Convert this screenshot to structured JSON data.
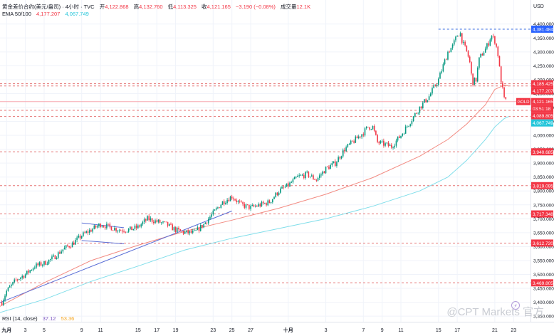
{
  "header": {
    "symbol": "黄金差价合约(美元/盎司) · 4小时 · TVC",
    "open_label": "开",
    "open": "4,122.868",
    "high_label": "高",
    "high": "4,132.760",
    "low_label": "低",
    "low": "4,113.325",
    "close_label": "收",
    "close": "4,121.165",
    "change": "−3.190 (−0.08%)",
    "volume_label": "成交量",
    "volume": "12.1K",
    "ema_label": "EMA 50/100",
    "ema50": "4,177.207",
    "ema100": "4,067.749"
  },
  "rsi": {
    "label": "RSI (14, close)",
    "v1": "37.12",
    "v2": "53.36"
  },
  "watermark": "@CPT Markets 官方",
  "currency": "USD",
  "colors": {
    "up": "#089981",
    "down": "#f23645",
    "ema50": "#f28b82",
    "ema100": "#80deea",
    "trend": "#5b6fd6",
    "hline": "#e57373",
    "topline": "#3d6fe0"
  },
  "chart_data": {
    "type": "candlestick",
    "title": "",
    "xlabel": "",
    "ylabel": "",
    "ylim": [
      3335,
      4430
    ],
    "y_ticks": [
      "4,400.000",
      "4,350.000",
      "4,300.000",
      "4,250.000",
      "4,200.000",
      "4,150.000",
      "4,100.000",
      "4,050.000",
      "4,000.000",
      "3,950.000",
      "3,900.000",
      "3,850.000",
      "3,800.000",
      "3,750.000",
      "3,700.000",
      "3,650.000",
      "3,600.000",
      "3,550.000",
      "3,500.000",
      "3,450.000",
      "3,400.000",
      "3,350.000"
    ],
    "y_tick_values": [
      4400,
      4350,
      4300,
      4250,
      4200,
      4150,
      4100,
      4050,
      4000,
      3950,
      3900,
      3850,
      3800,
      3750,
      3700,
      3650,
      3600,
      3550,
      3500,
      3450,
      3400,
      3350
    ],
    "x_ticks": [
      "九月",
      "3",
      "5",
      "9",
      "11",
      "15",
      "17",
      "19",
      "23",
      "25",
      "27",
      "十月",
      "3",
      "7",
      "9",
      "11",
      "15",
      "17",
      "21",
      "23"
    ],
    "x_tick_days": [
      1,
      3,
      5,
      9,
      11,
      15,
      17,
      19,
      23,
      25,
      27,
      31,
      35,
      39,
      41,
      43,
      47,
      49,
      53,
      55
    ],
    "x_start": "Sep 1",
    "day_range": [
      0.3,
      56.8
    ],
    "close_path_days": [
      0.5,
      1,
      2,
      3,
      4,
      5,
      6,
      7,
      8,
      9,
      10,
      11,
      12,
      13,
      14,
      15,
      16,
      17,
      18,
      19,
      20,
      21,
      22,
      23,
      24,
      25,
      26,
      27,
      28,
      29,
      30,
      31,
      32,
      33,
      34,
      35,
      36,
      37,
      38,
      39,
      39.5,
      40,
      40.5,
      41,
      42,
      43,
      44,
      45,
      46,
      47,
      47.3,
      47.7,
      48,
      48.5,
      49,
      49.3,
      49.6,
      50,
      50.3,
      50.6,
      51,
      51.3,
      51.6,
      52,
      52.3,
      52.6,
      53,
      53.3,
      53.6,
      54,
      54.2
    ],
    "close_path_values": [
      3400,
      3440,
      3480,
      3500,
      3530,
      3540,
      3560,
      3590,
      3610,
      3640,
      3660,
      3680,
      3670,
      3660,
      3660,
      3670,
      3700,
      3690,
      3680,
      3660,
      3650,
      3650,
      3680,
      3720,
      3760,
      3780,
      3750,
      3740,
      3750,
      3760,
      3800,
      3820,
      3850,
      3860,
      3840,
      3880,
      3900,
      3950,
      3980,
      4010,
      4030,
      4030,
      3975,
      3970,
      3960,
      4000,
      4050,
      4100,
      4140,
      4200,
      4230,
      4270,
      4300,
      4320,
      4360,
      4370,
      4330,
      4300,
      4270,
      4190,
      4200,
      4270,
      4290,
      4310,
      4330,
      4360,
      4340,
      4300,
      4210,
      4130,
      4121
    ],
    "ema50_days": [
      0,
      5,
      10,
      15,
      20,
      25,
      30,
      35,
      40,
      45,
      48,
      50,
      52,
      53,
      54,
      54.5
    ],
    "ema50_values": [
      3380,
      3470,
      3550,
      3605,
      3655,
      3695,
      3738,
      3788,
      3848,
      3925,
      3985,
      4040,
      4110,
      4165,
      4180,
      4177
    ],
    "ema100_days": [
      0,
      5,
      10,
      15,
      20,
      25,
      30,
      35,
      40,
      45,
      48,
      50,
      52,
      53,
      54,
      54.5
    ],
    "ema100_values": [
      3360,
      3410,
      3475,
      3530,
      3588,
      3630,
      3665,
      3700,
      3745,
      3800,
      3850,
      3910,
      3985,
      4030,
      4060,
      4068
    ],
    "horizontal_levels": [
      4381.484,
      4185.425,
      4177.207,
      4121.165,
      4089.805,
      4067.749,
      3940.685,
      3819.095,
      3717.348,
      3612.72,
      3469.805
    ],
    "price_labels": [
      {
        "text": "4,381.484",
        "color": "#2962ff"
      },
      {
        "text": "4,185.425",
        "color": "#f23645"
      },
      {
        "text": "4,177.207",
        "color": "#f23645"
      },
      {
        "text": "4,121.165",
        "color": "#f23645"
      },
      {
        "text": "03:51:18",
        "color": "#f23645"
      },
      {
        "text": "4,089.805",
        "color": "#f23645"
      },
      {
        "text": "4,067.749",
        "color": "#26c6da"
      },
      {
        "text": "3,940.685",
        "color": "#f23645"
      },
      {
        "text": "3,819.095",
        "color": "#f23645"
      },
      {
        "text": "3,717.348",
        "color": "#f23645"
      },
      {
        "text": "3,612.720",
        "color": "#f23645"
      },
      {
        "text": "3,469.805",
        "color": "#f23645"
      }
    ],
    "symbol_tag": "GOLD",
    "trendlines": [
      {
        "from_day": 0,
        "from_value": 3395,
        "to_day": 25,
        "to_value": 3728
      },
      {
        "from_day": 9,
        "from_value": 3685,
        "to_day": 13.5,
        "to_value": 3668
      },
      {
        "from_day": 9,
        "from_value": 3622,
        "to_day": 13.5,
        "to_value": 3610
      }
    ]
  }
}
